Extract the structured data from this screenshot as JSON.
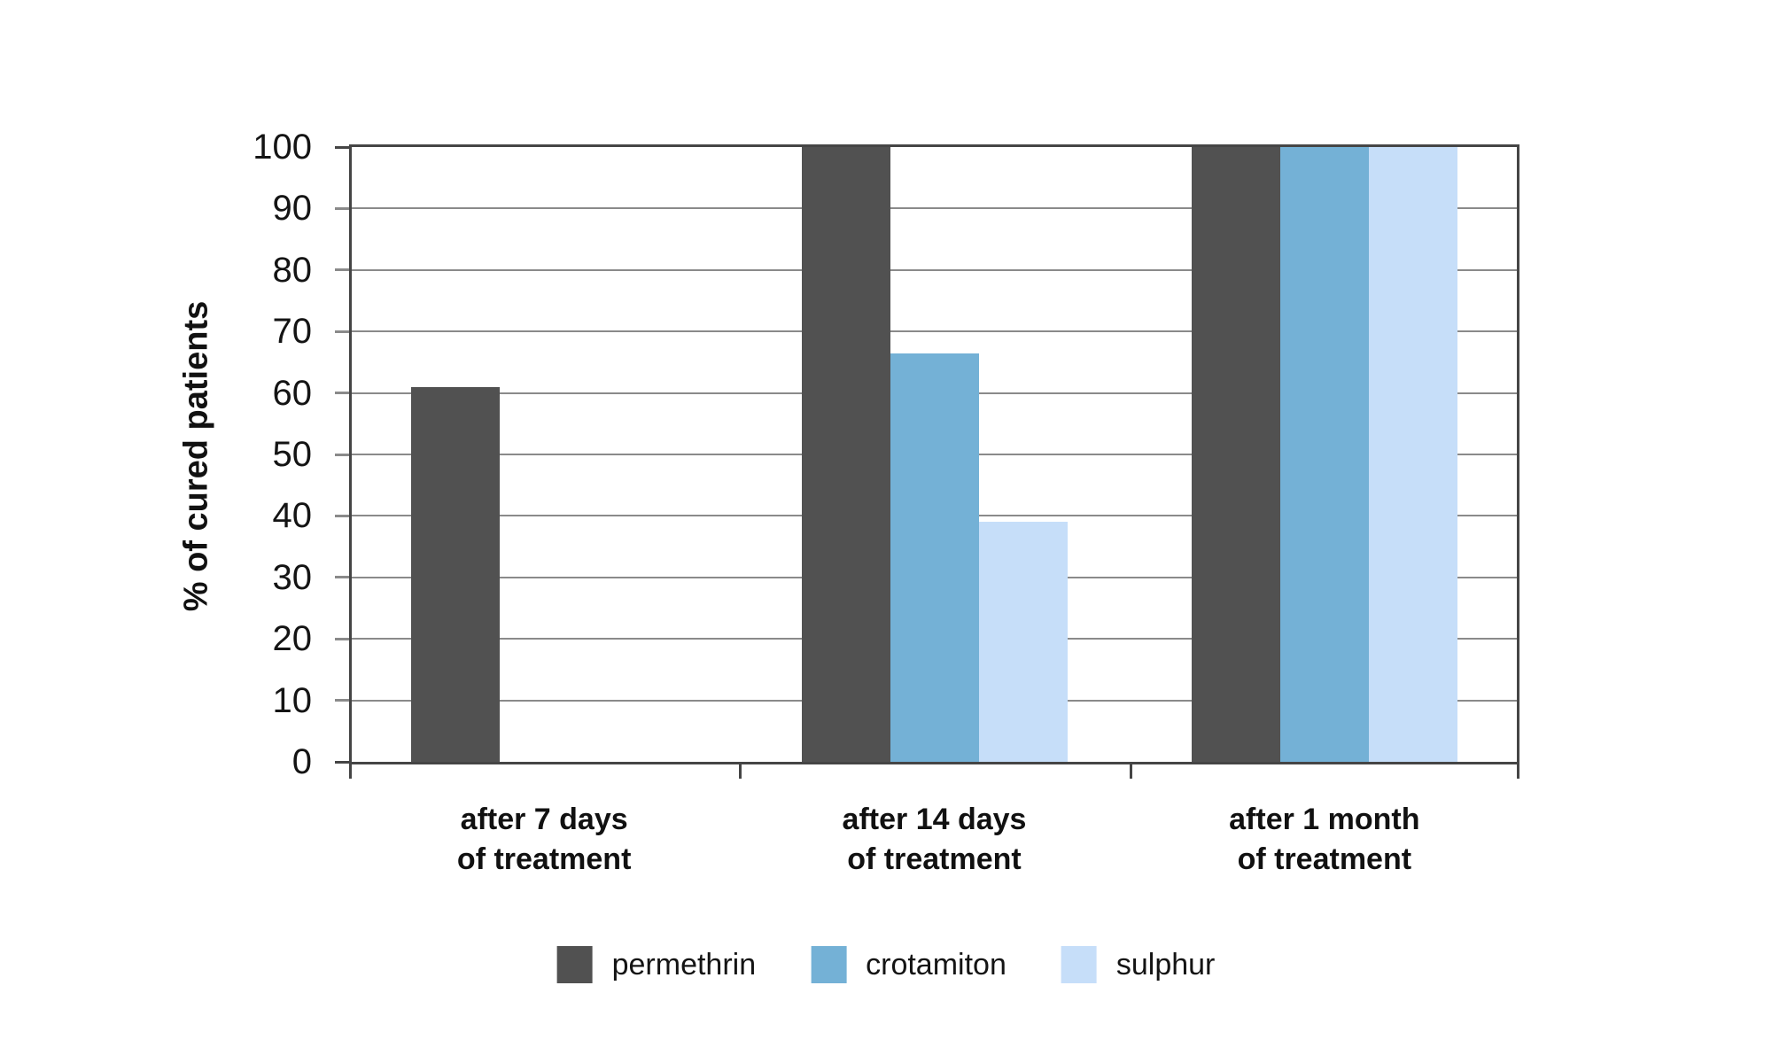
{
  "chart_data": {
    "type": "bar",
    "ylabel": "% of cured patients",
    "xlabel": "",
    "ylim": [
      0,
      100
    ],
    "ytick_step": 10,
    "yticks": [
      0,
      10,
      20,
      30,
      40,
      50,
      60,
      70,
      80,
      90,
      100
    ],
    "grid": "horizontal",
    "legend_position": "bottom",
    "categories": [
      "after 7 days\nof treatment",
      "after 14 days\nof treatment",
      "after 1 month\nof treatment"
    ],
    "series": [
      {
        "name": "permethrin",
        "color": "#515151",
        "values": [
          61,
          100,
          100
        ]
      },
      {
        "name": "crotamiton",
        "color": "#74b1d6",
        "values": [
          0,
          66.5,
          100
        ]
      },
      {
        "name": "sulphur",
        "color": "#c6def9",
        "values": [
          0,
          39,
          100
        ]
      }
    ],
    "colors": {
      "grid": "#8a8a8a",
      "axis_frame": "#454545",
      "text": "#141414",
      "background": "#ffffff"
    }
  }
}
